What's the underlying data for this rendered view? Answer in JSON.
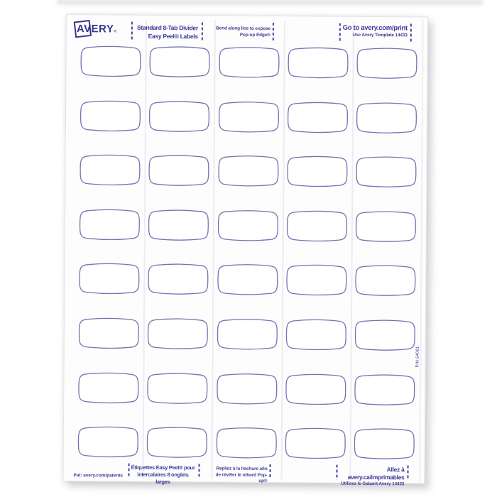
{
  "photo": {
    "background": "#ffffff"
  },
  "sheet": {
    "brand": "AVERY",
    "brand_mark": "®",
    "header_blocks": [
      {
        "line1": "Standard 8-Tab Divider",
        "line2": "Easy Peel® Labels"
      },
      {
        "line1": "Bend along line to expose",
        "line2": "Pop-up Edge®"
      },
      {
        "line1": "Go to avery.com/print",
        "line2": "Use Avery Template 14433"
      }
    ],
    "footer_blocks": [
      {
        "line1": "Étiquettes Easy Peel® pour",
        "line2": "intercalaires 8 onglets larges"
      },
      {
        "line1": "Repliez à la hachure afin",
        "line2": "de révéler le rebord Pop-up®"
      },
      {
        "line1": "Allez à avery.ca/imprimables",
        "line2": "Utilisez le Gabarit Avery 14433"
      }
    ],
    "patent_note": "Pat: avery.com/patents",
    "part_number": "P/N 64081",
    "grid": {
      "rows": 8,
      "cols": 5,
      "total_labels": 40
    },
    "colors": {
      "label_outline": "#7473b4",
      "ink": "#3e3a99",
      "logo_ink": "#393591",
      "faint_line": "#ededf1",
      "dash": "#44419e"
    }
  }
}
